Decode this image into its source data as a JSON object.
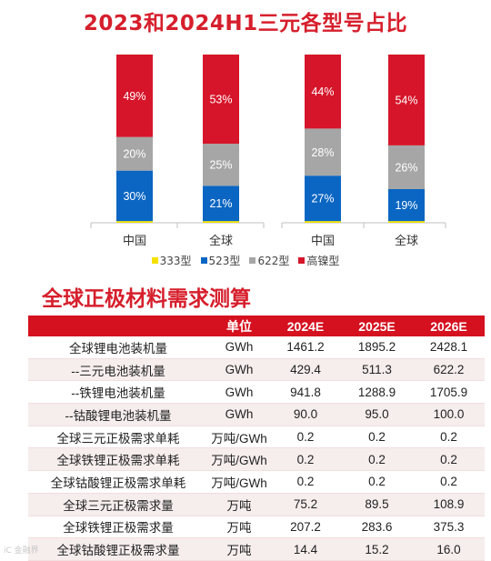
{
  "title": "2023和2024H1三元各型号占比",
  "chart_data": {
    "type": "bar",
    "stacked": true,
    "groups": [
      {
        "categories": [
          "中国",
          "全球"
        ]
      },
      {
        "categories": [
          "中国",
          "全球"
        ]
      }
    ],
    "bars": [
      {
        "category": "中国",
        "values": {
          "333型": 1,
          "523型": 30,
          "622型": 20,
          "高镍型": 49
        }
      },
      {
        "category": "全球",
        "values": {
          "333型": 1,
          "523型": 21,
          "622型": 25,
          "高镍型": 53
        }
      },
      {
        "category": "中国",
        "values": {
          "333型": 1,
          "523型": 27,
          "622型": 28,
          "高镍型": 44
        }
      },
      {
        "category": "全球",
        "values": {
          "333型": 1,
          "523型": 19,
          "622型": 26,
          "高镍型": 54
        }
      }
    ],
    "labels": [
      {
        "523型": "30%",
        "622型": "20%",
        "高镍型": "49%"
      },
      {
        "523型": "21%",
        "622型": "25%",
        "高镍型": "53%"
      },
      {
        "523型": "27%",
        "622型": "28%",
        "高镍型": "44%"
      },
      {
        "523型": "19%",
        "622型": "26%",
        "高镍型": "54%"
      }
    ],
    "series": [
      {
        "name": "333型",
        "color": "#f5e100"
      },
      {
        "name": "523型",
        "color": "#0a66c2"
      },
      {
        "name": "622型",
        "color": "#a6a6a6"
      },
      {
        "name": "高镍型",
        "color": "#d6152a"
      }
    ],
    "ylim": [
      0,
      100
    ],
    "legend_position": "bottom"
  },
  "table": {
    "title": "全球正极材料需求测算",
    "headers": [
      "",
      "单位",
      "2024E",
      "2025E",
      "2026E"
    ],
    "rows": [
      [
        "全球锂电池装机量",
        "GWh",
        "1461.2",
        "1895.2",
        "2428.1"
      ],
      [
        "--三元电池装机量",
        "GWh",
        "429.4",
        "511.3",
        "622.2"
      ],
      [
        "--铁锂电池装机量",
        "GWh",
        "941.8",
        "1288.9",
        "1705.9"
      ],
      [
        "--钴酸锂电池装机量",
        "GWh",
        "90.0",
        "95.0",
        "100.0"
      ],
      [
        "全球三元正极需求单耗",
        "万吨/GWh",
        "0.2",
        "0.2",
        "0.2"
      ],
      [
        "全球铁锂正极需求单耗",
        "万吨/GWh",
        "0.2",
        "0.2",
        "0.2"
      ],
      [
        "全球钴酸锂正极需求单耗",
        "万吨/GWh",
        "0.2",
        "0.2",
        "0.2"
      ],
      [
        "全球三元正极需求量",
        "万吨",
        "75.2",
        "89.5",
        "108.9"
      ],
      [
        "全球铁锂正极需求量",
        "万吨",
        "207.2",
        "283.6",
        "375.3"
      ],
      [
        "全球钴酸锂正极需求量",
        "万吨",
        "14.4",
        "15.2",
        "16.0"
      ]
    ]
  },
  "watermark": "iC 金融界"
}
